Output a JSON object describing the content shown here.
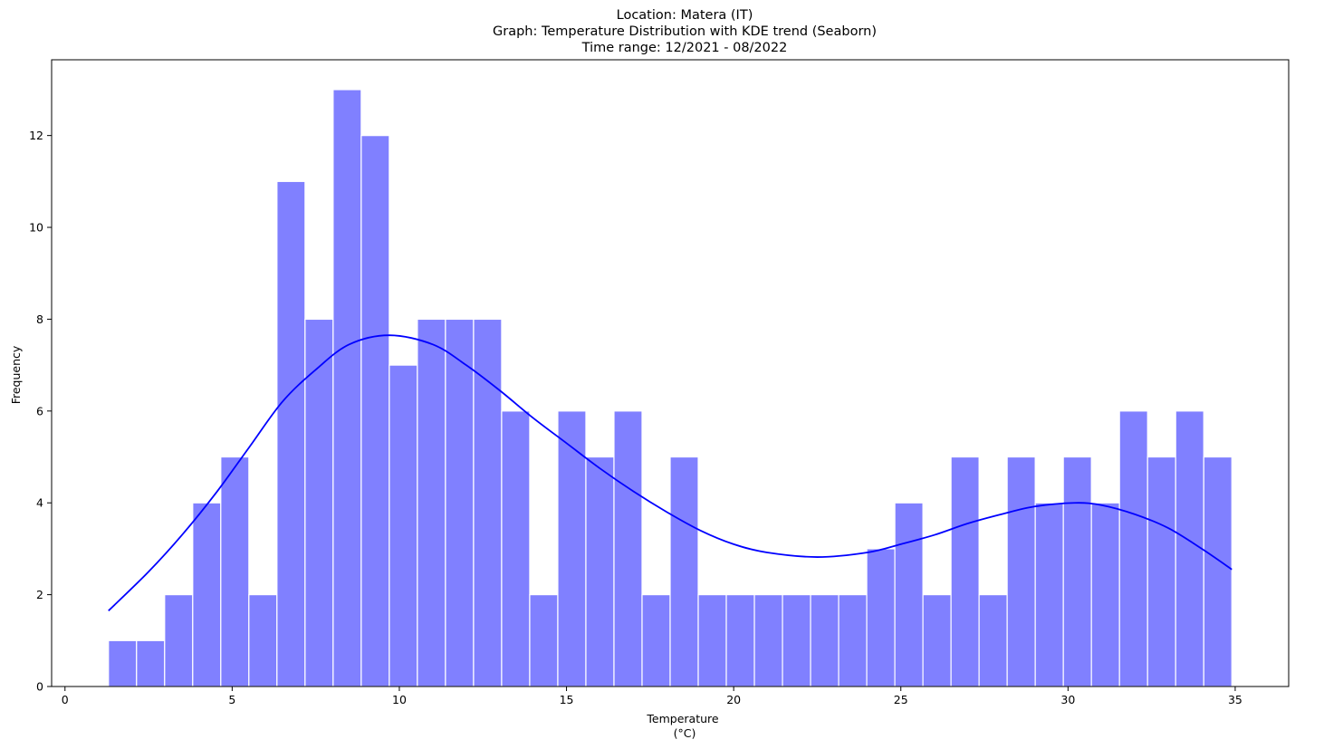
{
  "chart_data": {
    "type": "bar",
    "title_lines": [
      "Location: Matera (IT)",
      "Graph: Temperature Distribution with KDE trend (Seaborn)",
      "Time range: 12/2021 - 08/2022"
    ],
    "xlabel_lines": [
      "Temperature",
      "(°C)"
    ],
    "ylabel": "Frequency",
    "xlim": [
      -0.4,
      36.6
    ],
    "ylim": [
      0,
      13.65
    ],
    "xticks": [
      0,
      5,
      10,
      15,
      20,
      25,
      30,
      35
    ],
    "yticks": [
      0,
      2,
      4,
      6,
      8,
      10,
      12
    ],
    "grid": false,
    "bar_color": "#8080ff",
    "bar_edge_color": "#ffffff",
    "line_color": "#0000ff",
    "bins": {
      "start": 1.3,
      "width": 0.84,
      "counts": [
        1,
        1,
        2,
        4,
        5,
        2,
        11,
        8,
        13,
        12,
        7,
        8,
        8,
        8,
        6,
        2,
        6,
        5,
        6,
        2,
        5,
        2,
        2,
        2,
        2,
        2,
        2,
        3,
        4,
        2,
        5,
        2,
        5,
        4,
        5,
        4,
        6,
        5,
        6,
        5
      ]
    },
    "series": [
      {
        "type": "kde",
        "x": [
          1.3,
          2.5,
          3.5,
          4.5,
          5.5,
          6.5,
          7.5,
          8.5,
          9.7,
          11.0,
          12.0,
          13.0,
          14.0,
          15.0,
          16.0,
          17.0,
          18.0,
          19.0,
          20.0,
          21.0,
          22.5,
          24.0,
          25.0,
          26.0,
          27.0,
          28.0,
          29.0,
          30.2,
          31.0,
          32.0,
          33.0,
          34.0,
          34.9
        ],
        "y": [
          1.65,
          2.5,
          3.3,
          4.2,
          5.2,
          6.2,
          6.9,
          7.45,
          7.65,
          7.45,
          7.0,
          6.45,
          5.85,
          5.3,
          4.75,
          4.25,
          3.8,
          3.4,
          3.1,
          2.92,
          2.82,
          2.92,
          3.1,
          3.3,
          3.55,
          3.75,
          3.92,
          4.0,
          3.95,
          3.75,
          3.45,
          3.0,
          2.55
        ]
      }
    ]
  }
}
